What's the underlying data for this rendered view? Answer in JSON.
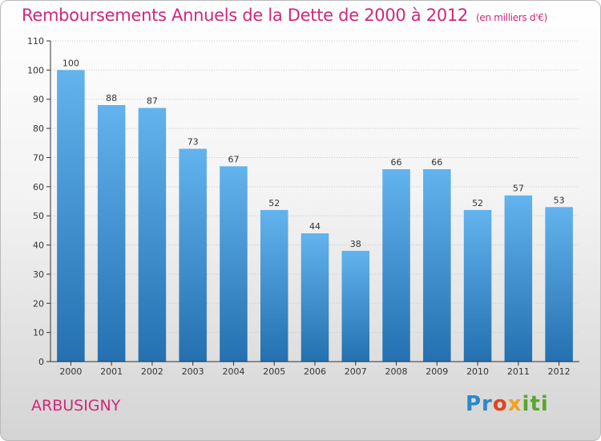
{
  "chart_data": {
    "type": "bar",
    "title": "Remboursements Annuels de la Dette de 2000 à 2012",
    "subtitle": "(en milliers d'€)",
    "categories": [
      "2000",
      "2001",
      "2002",
      "2003",
      "2004",
      "2005",
      "2006",
      "2007",
      "2008",
      "2009",
      "2010",
      "2011",
      "2012"
    ],
    "values": [
      100,
      88,
      87,
      73,
      67,
      52,
      44,
      38,
      66,
      66,
      52,
      57,
      53
    ],
    "yticks": [
      "0",
      "10",
      "20",
      "30",
      "40",
      "50",
      "60",
      "70",
      "80",
      "90",
      "100",
      "110"
    ],
    "ylim": [
      0,
      110
    ],
    "xlabel": "",
    "ylabel": "",
    "grid": true
  },
  "footer": {
    "town": "ARBUSIGNY",
    "brand": "Proxiti"
  },
  "colors": {
    "title": "#d0287a",
    "bar_light": "#62b3ee",
    "bar_dark": "#2470b0"
  }
}
